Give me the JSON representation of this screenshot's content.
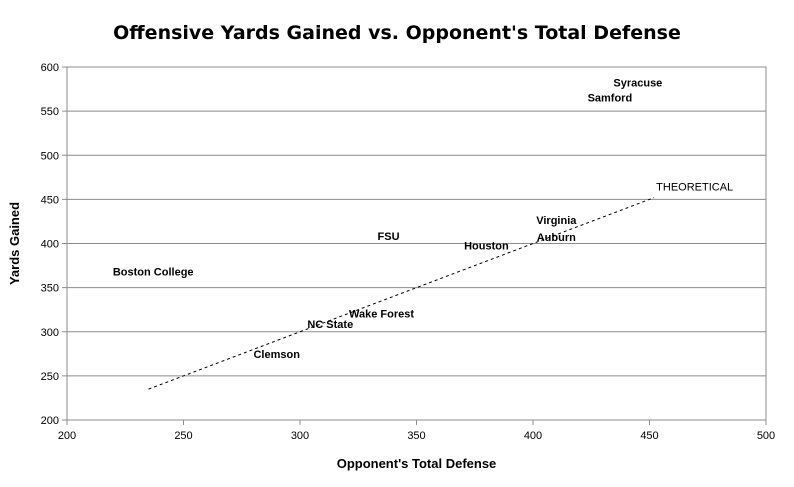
{
  "chart_data": {
    "type": "scatter",
    "title": "Offensive Yards Gained vs. Opponent's Total Defense",
    "xlabel": "Opponent's Total Defense",
    "ylabel": "Yards Gained",
    "xlim": [
      200,
      500
    ],
    "ylim": [
      200,
      600
    ],
    "xticks": [
      200,
      250,
      300,
      350,
      400,
      450,
      500
    ],
    "yticks": [
      200,
      250,
      300,
      350,
      400,
      450,
      500,
      550,
      600
    ],
    "grid": "horizontal",
    "points": [
      {
        "label": "Syracuse",
        "x": 445,
        "y": 578
      },
      {
        "label": "Samford",
        "x": 433,
        "y": 561
      },
      {
        "label": "Virginia",
        "x": 410,
        "y": 422
      },
      {
        "label": "Auburn",
        "x": 410,
        "y": 403
      },
      {
        "label": "Houston",
        "x": 380,
        "y": 393
      },
      {
        "label": "FSU",
        "x": 338,
        "y": 404
      },
      {
        "label": "Boston College",
        "x": 237,
        "y": 364
      },
      {
        "label": "Wake Forest",
        "x": 335,
        "y": 316
      },
      {
        "label": "NC State",
        "x": 313,
        "y": 304
      },
      {
        "label": "Clemson",
        "x": 290,
        "y": 270
      }
    ],
    "reference_line": {
      "label": "THEORETICAL",
      "x": [
        235,
        452
      ],
      "y": [
        235,
        452
      ],
      "style": "dashed"
    }
  }
}
